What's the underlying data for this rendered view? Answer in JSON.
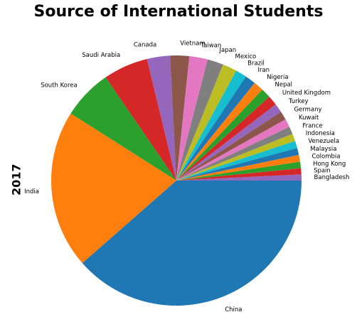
{
  "chart_data": {
    "type": "pie",
    "title": "Source of International Students",
    "ylabel": "2017",
    "start_angle_deg": 0,
    "direction": "clockwise",
    "categories": [
      "China",
      "India",
      "South Korea",
      "Saudi Arabia",
      "Canada",
      "Vietnam",
      "Taiwan",
      "Japan",
      "Mexico",
      "Brazil",
      "Iran",
      "Nigeria",
      "Nepal",
      "United Kingdom",
      "Turkey",
      "Germany",
      "Kuwait",
      "France",
      "Indonesia",
      "Venezuela",
      "Malaysia",
      "Colombia",
      "Hong Kong",
      "Spain",
      "Bangladesh"
    ],
    "values": [
      350755,
      186267,
      58663,
      52611,
      27065,
      22438,
      21516,
      18780,
      16835,
      13089,
      12643,
      11710,
      11607,
      11489,
      10586,
      10169,
      9825,
      8814,
      8776,
      8540,
      8247,
      7982,
      7547,
      7164,
      7143
    ],
    "colors": [
      "#1f77b4",
      "#ff7f0e",
      "#2ca02c",
      "#d62728",
      "#9467bd",
      "#8c564b",
      "#e377c2",
      "#7f7f7f",
      "#bcbd22",
      "#17becf",
      "#1f77b4",
      "#ff7f0e",
      "#2ca02c",
      "#d62728",
      "#9467bd",
      "#8c564b",
      "#e377c2",
      "#7f7f7f",
      "#bcbd22",
      "#17becf",
      "#1f77b4",
      "#ff7f0e",
      "#2ca02c",
      "#d62728",
      "#9467bd"
    ]
  }
}
